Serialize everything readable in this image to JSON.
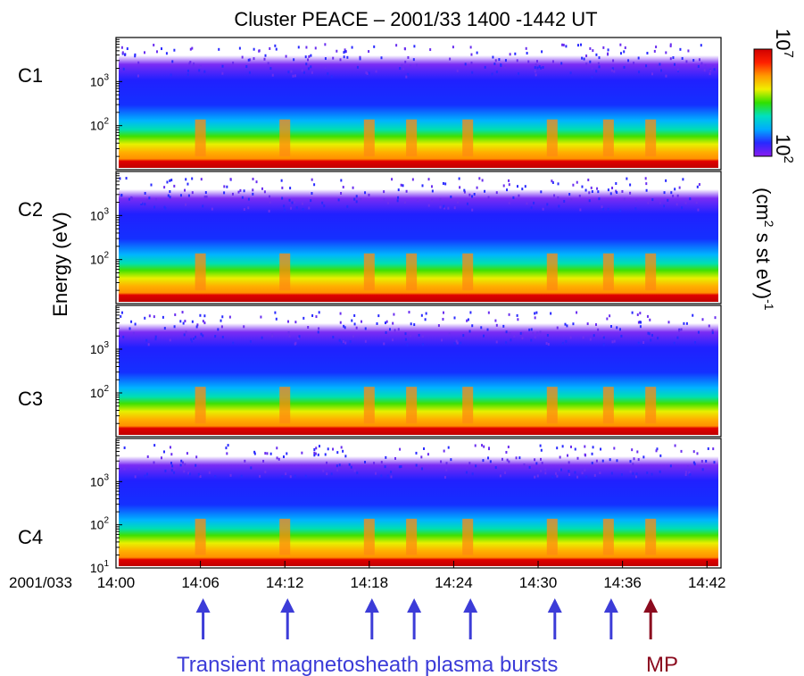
{
  "chart_data": {
    "type": "heatmap",
    "title": "Cluster PEACE – 2001/33   1400 -1442 UT",
    "ylabel": "Energy (eV)",
    "date_label": "2001/033",
    "x_ticks": [
      "14:00",
      "14:06",
      "14:12",
      "14:18",
      "14:24",
      "14:30",
      "14:36",
      "14:42"
    ],
    "xlim": [
      "14:00",
      "14:43"
    ],
    "ylim": [
      10,
      10000
    ],
    "y_scale": "log",
    "y_tick_labels": {
      "upper": [
        {
          "base": "10",
          "exp": "3"
        },
        {
          "base": "10",
          "exp": "2"
        }
      ],
      "bottom": [
        {
          "base": "10",
          "exp": "3"
        },
        {
          "base": "10",
          "exp": "2"
        },
        {
          "base": "10",
          "exp": "1"
        }
      ]
    },
    "panels": [
      {
        "name": "C1"
      },
      {
        "name": "C2"
      },
      {
        "name": "C3"
      },
      {
        "name": "C4"
      }
    ],
    "colorbar": {
      "scale": "log",
      "max_base": "10",
      "max_exp": "7",
      "min_base": "10",
      "min_exp": "2",
      "unit_parts": [
        "(cm",
        "2",
        " s st eV)",
        "-1"
      ],
      "colors": [
        "#8a1cf0",
        "#2828ff",
        "#00aaff",
        "#00e0c0",
        "#30e000",
        "#f0f000",
        "#ff9a00",
        "#ff2000",
        "#d00000"
      ]
    },
    "background_color": "#1e14f0",
    "bursts_times": [
      "14:06",
      "14:12",
      "14:18",
      "14:21",
      "14:25",
      "14:31",
      "14:35"
    ],
    "mp_time": "14:38",
    "burst_arrow_color": "#3c3cd8",
    "mp_arrow_color": "#8b0a1e",
    "annotation_label": "Transient magnetosheath plasma bursts",
    "mp_label": "MP"
  }
}
